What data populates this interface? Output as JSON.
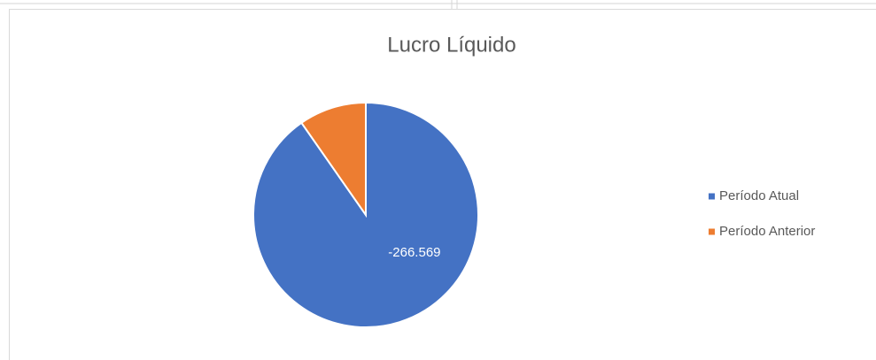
{
  "chart_data": {
    "type": "pie",
    "title": "Lucro Líquido",
    "categories": [
      "Período Atual",
      "Período Anterior"
    ],
    "values": [
      -266569,
      -28600
    ],
    "value_labels": [
      "-266.569",
      null
    ],
    "colors": [
      "#4472c4",
      "#ed7d31"
    ],
    "legend": "right"
  }
}
